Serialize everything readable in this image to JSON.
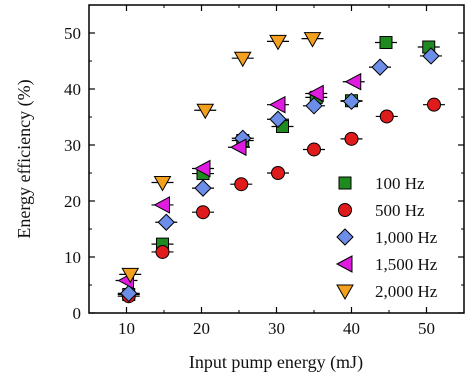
{
  "chart_data": {
    "type": "scatter",
    "title": "",
    "xlabel": "Input pump energy (mJ)",
    "ylabel": "Energy efficiency (%)",
    "xlim": [
      5,
      55
    ],
    "ylim": [
      0,
      55
    ],
    "xticks": [
      10,
      20,
      30,
      40,
      50
    ],
    "yticks": [
      0,
      10,
      20,
      30,
      40,
      50
    ],
    "grid": false,
    "legend_position": "bottom-right",
    "series": [
      {
        "name": "100 Hz",
        "marker": "square",
        "color": "#1f8a1f",
        "points": [
          {
            "x": 10.3,
            "y": 3.3
          },
          {
            "x": 14.8,
            "y": 12.3
          },
          {
            "x": 20.2,
            "y": 24.9
          },
          {
            "x": 25.5,
            "y": 30.8
          },
          {
            "x": 30.8,
            "y": 33.3
          },
          {
            "x": 35.3,
            "y": 38.5
          },
          {
            "x": 40.0,
            "y": 37.9
          },
          {
            "x": 44.6,
            "y": 48.3
          },
          {
            "x": 50.3,
            "y": 47.5
          }
        ]
      },
      {
        "name": "500 Hz",
        "marker": "circle",
        "color": "#e01b1b",
        "points": [
          {
            "x": 10.3,
            "y": 3.0
          },
          {
            "x": 14.8,
            "y": 10.9
          },
          {
            "x": 20.2,
            "y": 18.0
          },
          {
            "x": 25.3,
            "y": 23.0
          },
          {
            "x": 30.2,
            "y": 25.0
          },
          {
            "x": 35.0,
            "y": 29.2
          },
          {
            "x": 40.0,
            "y": 31.1
          },
          {
            "x": 44.7,
            "y": 35.1
          },
          {
            "x": 51.0,
            "y": 37.2
          }
        ]
      },
      {
        "name": "1,000 Hz",
        "marker": "diamond",
        "color": "#6d8ee8",
        "points": [
          {
            "x": 10.3,
            "y": 3.5
          },
          {
            "x": 15.3,
            "y": 16.2
          },
          {
            "x": 20.2,
            "y": 22.3
          },
          {
            "x": 25.5,
            "y": 31.2
          },
          {
            "x": 30.2,
            "y": 34.6
          },
          {
            "x": 35.0,
            "y": 37.0
          },
          {
            "x": 40.0,
            "y": 37.8
          },
          {
            "x": 43.8,
            "y": 43.9
          },
          {
            "x": 50.6,
            "y": 45.9
          }
        ]
      },
      {
        "name": "1,500 Hz",
        "marker": "triangle-left",
        "color": "#e01be0",
        "points": [
          {
            "x": 10.0,
            "y": 5.8
          },
          {
            "x": 14.8,
            "y": 19.3
          },
          {
            "x": 20.2,
            "y": 25.8
          },
          {
            "x": 25.0,
            "y": 29.6
          },
          {
            "x": 30.2,
            "y": 37.2
          },
          {
            "x": 35.3,
            "y": 39.2
          },
          {
            "x": 40.3,
            "y": 41.3
          }
        ]
      },
      {
        "name": "2,000 Hz",
        "marker": "triangle-down",
        "color": "#f2a01e",
        "points": [
          {
            "x": 10.5,
            "y": 6.9
          },
          {
            "x": 14.8,
            "y": 23.3
          },
          {
            "x": 20.5,
            "y": 36.2
          },
          {
            "x": 25.5,
            "y": 45.5
          },
          {
            "x": 30.2,
            "y": 48.5
          },
          {
            "x": 34.8,
            "y": 49.0
          }
        ]
      }
    ]
  }
}
